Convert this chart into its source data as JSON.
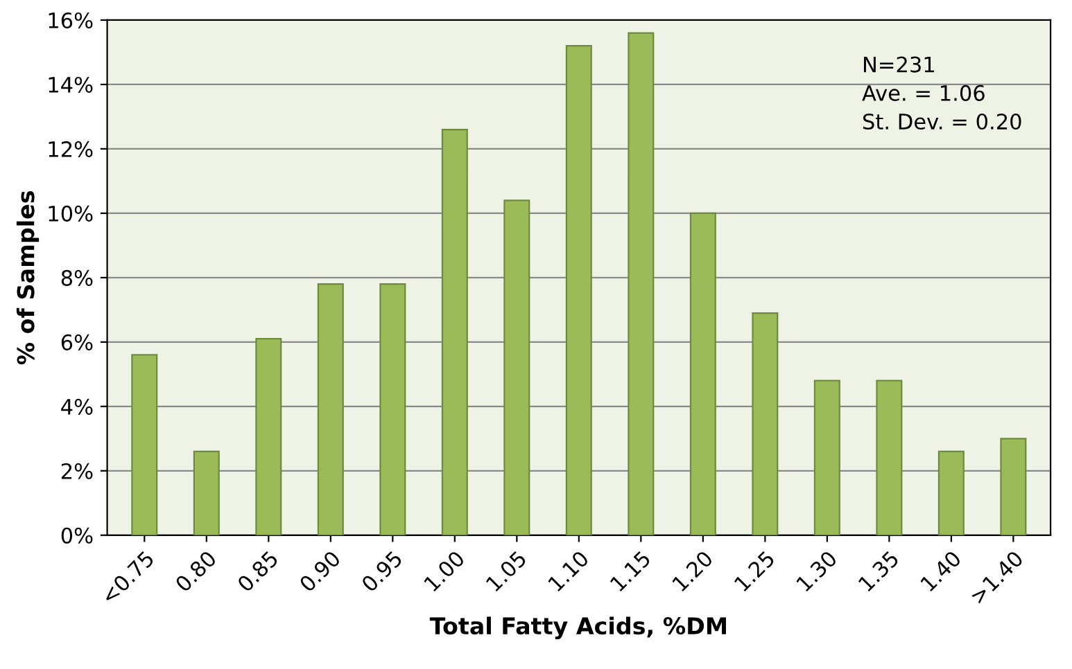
{
  "chart_data": {
    "type": "bar",
    "xlabel": "Total Fatty Acids, %DM",
    "ylabel": "% of Samples",
    "categories": [
      "<0.75",
      "0.80",
      "0.85",
      "0.90",
      "0.95",
      "1.00",
      "1.05",
      "1.10",
      "1.15",
      "1.20",
      "1.25",
      "1.30",
      "1.35",
      "1.40",
      ">1.40"
    ],
    "values": [
      5.6,
      2.6,
      6.1,
      7.8,
      7.8,
      12.6,
      10.4,
      15.2,
      15.6,
      10.0,
      6.9,
      4.8,
      4.8,
      2.6,
      3.0
    ],
    "color": "#9bbb59",
    "ylim": [
      0,
      16
    ],
    "yticks": [
      {
        "value": 0,
        "label": "0%"
      },
      {
        "value": 2,
        "label": "2%"
      },
      {
        "value": 4,
        "label": "4%"
      },
      {
        "value": 6,
        "label": "6%"
      },
      {
        "value": 8,
        "label": "8%"
      },
      {
        "value": 10,
        "label": "10%"
      },
      {
        "value": 12,
        "label": "12%"
      },
      {
        "value": 14,
        "label": "14%"
      },
      {
        "value": 16,
        "label": "16%"
      }
    ],
    "grid": "y",
    "annotations": [
      "N=231\nAve. = 1.06\nSt. Dev. = 0.20"
    ]
  }
}
